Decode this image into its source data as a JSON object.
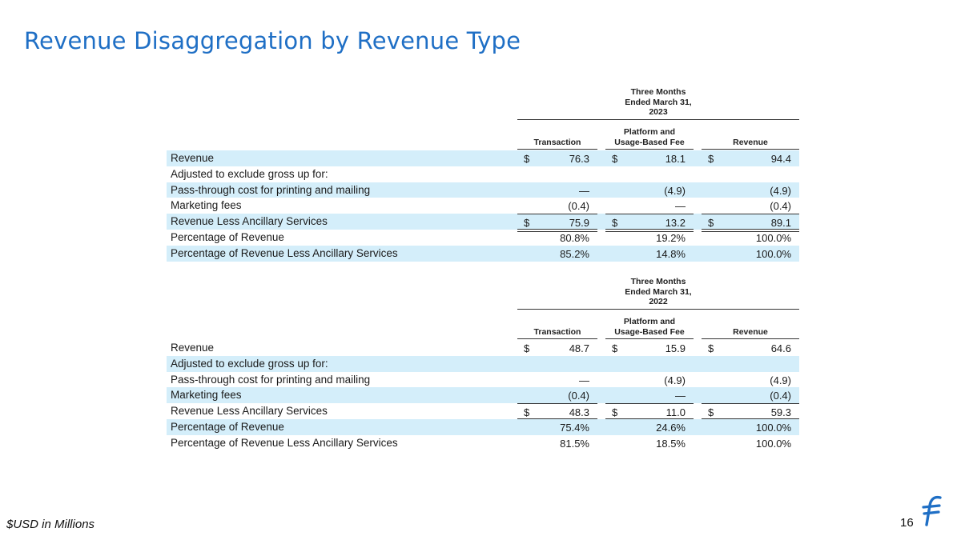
{
  "title": "Revenue Disaggregation by Revenue Type",
  "footnote": "$USD in Millions",
  "page_number": "16",
  "logo_icon": "flywire-f-logo",
  "columns": {
    "transaction": "Transaction",
    "platform_line1": "Platform and",
    "platform_line2": "Usage-Based Fee",
    "revenue": "Revenue"
  },
  "tables": [
    {
      "period_lines": [
        "Three Months",
        "Ended March 31,",
        "2023"
      ],
      "rows": [
        {
          "label": "Revenue",
          "transaction": "76.3",
          "platform": "18.1",
          "revenue": "94.4",
          "currency": "$"
        },
        {
          "label": "Adjusted to exclude gross up for:",
          "transaction": "",
          "platform": "",
          "revenue": "",
          "currency": ""
        },
        {
          "label": "Pass-through cost for printing and mailing",
          "transaction": "—",
          "platform": "(4.9)",
          "revenue": "(4.9)",
          "currency": ""
        },
        {
          "label": "Marketing fees",
          "transaction": "(0.4)",
          "platform": "—",
          "revenue": "(0.4)",
          "currency": ""
        },
        {
          "label": "Revenue Less Ancillary Services",
          "transaction": "75.9",
          "platform": "13.2",
          "revenue": "89.1",
          "currency": "$"
        },
        {
          "label": "Percentage of Revenue",
          "transaction": "80.8%",
          "platform": "19.2%",
          "revenue": "100.0%",
          "currency": ""
        },
        {
          "label": "Percentage of Revenue Less Ancillary Services",
          "transaction": "85.2%",
          "platform": "14.8%",
          "revenue": "100.0%",
          "currency": ""
        }
      ]
    },
    {
      "period_lines": [
        "Three Months",
        "Ended March 31,",
        "2022"
      ],
      "rows": [
        {
          "label": "Revenue",
          "transaction": "48.7",
          "platform": "15.9",
          "revenue": "64.6",
          "currency": "$"
        },
        {
          "label": "Adjusted to exclude gross up for:",
          "transaction": "",
          "platform": "",
          "revenue": "",
          "currency": ""
        },
        {
          "label": "Pass-through cost for printing and mailing",
          "transaction": "—",
          "platform": "(4.9)",
          "revenue": "(4.9)",
          "currency": ""
        },
        {
          "label": "Marketing fees",
          "transaction": "(0.4)",
          "platform": "—",
          "revenue": "(0.4)",
          "currency": ""
        },
        {
          "label": "Revenue Less Ancillary Services",
          "transaction": "48.3",
          "platform": "11.0",
          "revenue": "59.3",
          "currency": "$"
        },
        {
          "label": "Percentage of Revenue",
          "transaction": "75.4%",
          "platform": "24.6%",
          "revenue": "100.0%",
          "currency": ""
        },
        {
          "label": "Percentage of Revenue Less Ancillary Services",
          "transaction": "81.5%",
          "platform": "18.5%",
          "revenue": "100.0%",
          "currency": ""
        }
      ]
    }
  ]
}
